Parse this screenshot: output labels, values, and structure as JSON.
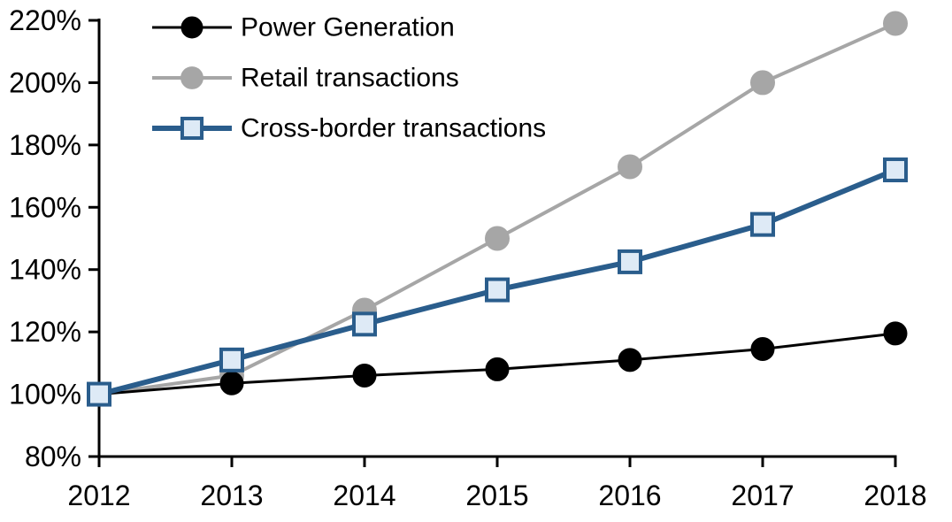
{
  "chart_data": {
    "type": "line",
    "title": "",
    "xlabel": "",
    "ylabel": "",
    "x_categories": [
      "2012",
      "2013",
      "2014",
      "2015",
      "2016",
      "2017",
      "2018"
    ],
    "y_axis": {
      "min": 80,
      "max": 220,
      "step": 20,
      "tick_labels": [
        "80%",
        "100%",
        "120%",
        "140%",
        "160%",
        "180%",
        "200%",
        "220%"
      ]
    },
    "grid": false,
    "background": "#FFFFFF",
    "axis_color": "#000000",
    "legend": {
      "position": "top-left-inside",
      "entries": [
        "Power Generation",
        "Retail transactions",
        "Cross-border transactions"
      ]
    },
    "series": [
      {
        "name": "Power Generation",
        "marker": "circle",
        "line_color": "#000000",
        "marker_fill": "#000000",
        "marker_stroke": "#000000",
        "line_width": 3,
        "marker_size": 13,
        "values": [
          100,
          103.5,
          106,
          108,
          111,
          114.5,
          119.5
        ]
      },
      {
        "name": "Retail transactions",
        "marker": "circle",
        "line_color": "#A6A6A6",
        "marker_fill": "#A6A6A6",
        "marker_stroke": "#A6A6A6",
        "line_width": 4,
        "marker_size": 13.5,
        "values": [
          100,
          106,
          127,
          150,
          173,
          200,
          219
        ]
      },
      {
        "name": "Cross-border transactions",
        "marker": "square",
        "line_color": "#2A5D8C",
        "marker_fill": "#DEEAF6",
        "marker_stroke": "#2A5D8C",
        "line_width": 6,
        "marker_size": 24,
        "values": [
          100,
          111,
          122.5,
          133.5,
          142.5,
          154.5,
          172
        ]
      }
    ],
    "draw_order": [
      1,
      0,
      2
    ]
  }
}
